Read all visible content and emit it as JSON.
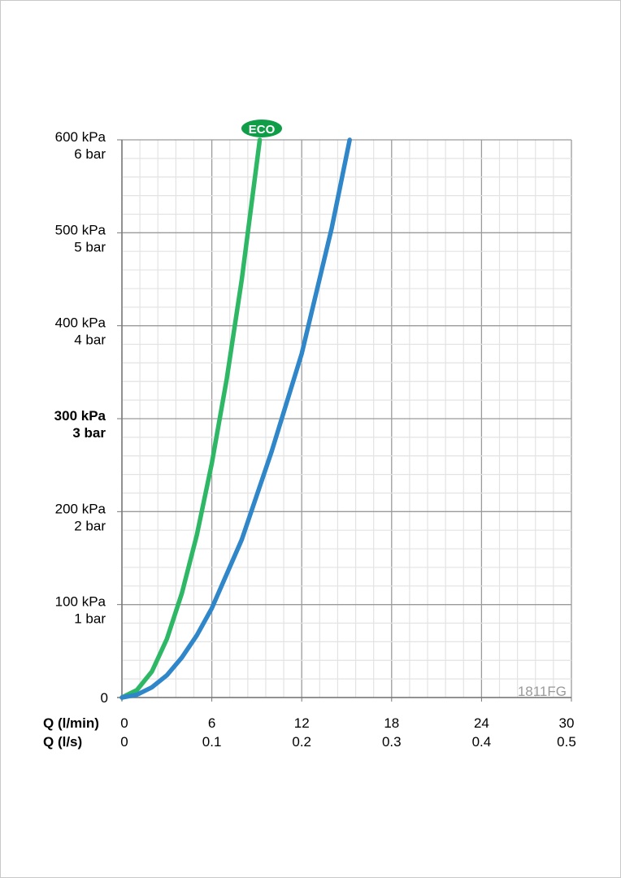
{
  "chart_data": {
    "type": "line",
    "x_label_primary": "Q (l/min)",
    "x_label_secondary": "Q (l/s)",
    "x_ticks_primary": [
      "0",
      "6",
      "12",
      "18",
      "24",
      "30"
    ],
    "x_ticks_secondary": [
      "0",
      "0.1",
      "0.2",
      "0.3",
      "0.4",
      "0.5"
    ],
    "xlim": [
      0,
      30
    ],
    "ylim": [
      0,
      600
    ],
    "y_ticks": [
      {
        "value": 0,
        "kpa": "0",
        "bar": ""
      },
      {
        "value": 100,
        "kpa": "100 kPa",
        "bar": "1 bar"
      },
      {
        "value": 200,
        "kpa": "200 kPa",
        "bar": "2 bar"
      },
      {
        "value": 300,
        "kpa": "300 kPa",
        "bar": "3 bar",
        "bold": true
      },
      {
        "value": 400,
        "kpa": "400 kPa",
        "bar": "4 bar"
      },
      {
        "value": 500,
        "kpa": "500 kPa",
        "bar": "5 bar"
      },
      {
        "value": 600,
        "kpa": "600 kPa",
        "bar": "6 bar"
      }
    ],
    "grid": true,
    "series": [
      {
        "name": "ECO",
        "color": "#2eb866",
        "x": [
          0,
          1,
          2,
          3,
          4,
          5,
          6,
          7,
          8,
          9.2
        ],
        "y": [
          0,
          8,
          28,
          63,
          112,
          175,
          252,
          343,
          450,
          600
        ]
      },
      {
        "color": "#2f86c8",
        "x": [
          0,
          1,
          2,
          3,
          4,
          5,
          6,
          8,
          10,
          12,
          14,
          15.2
        ],
        "y": [
          0,
          3,
          11,
          24,
          43,
          67,
          96,
          170,
          265,
          370,
          505,
          600
        ]
      }
    ],
    "badge": {
      "text": "ECO",
      "color": "#0f9d48"
    },
    "watermark": "1811FG"
  }
}
